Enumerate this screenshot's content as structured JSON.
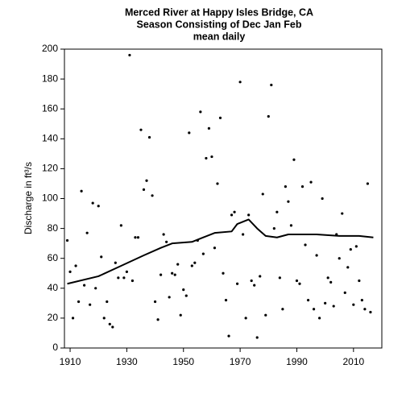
{
  "chart_data": {
    "type": "scatter",
    "title_lines": [
      "Merced River at Happy Isles Bridge, CA",
      "Season Consisting of Dec Jan Feb",
      "mean daily"
    ],
    "y_label": "Discharge in ft³/s",
    "xlim": [
      1908,
      2020
    ],
    "xticks": [
      1910,
      1930,
      1950,
      1970,
      1990,
      2010
    ],
    "ylim": [
      0,
      200
    ],
    "yticks": [
      0,
      20,
      40,
      60,
      80,
      100,
      120,
      140,
      160,
      180,
      200
    ],
    "grid": false,
    "color": "#000000",
    "x": [
      1909,
      1910,
      1911,
      1912,
      1913,
      1914,
      1915,
      1916,
      1917,
      1918,
      1919,
      1920,
      1921,
      1922,
      1923,
      1924,
      1925,
      1926,
      1927,
      1928,
      1929,
      1930,
      1931,
      1932,
      1933,
      1934,
      1935,
      1936,
      1937,
      1938,
      1939,
      1940,
      1941,
      1942,
      1943,
      1944,
      1945,
      1946,
      1947,
      1948,
      1949,
      1950,
      1951,
      1952,
      1953,
      1954,
      1955,
      1956,
      1957,
      1958,
      1959,
      1960,
      1961,
      1962,
      1963,
      1964,
      1965,
      1966,
      1967,
      1968,
      1969,
      1970,
      1971,
      1972,
      1973,
      1974,
      1975,
      1976,
      1977,
      1978,
      1979,
      1980,
      1981,
      1982,
      1983,
      1984,
      1985,
      1986,
      1987,
      1988,
      1989,
      1990,
      1991,
      1992,
      1993,
      1994,
      1995,
      1996,
      1997,
      1998,
      1999,
      2000,
      2001,
      2002,
      2003,
      2004,
      2005,
      2006,
      2007,
      2008,
      2009,
      2010,
      2011,
      2012,
      2013,
      2014,
      2015,
      2016
    ],
    "values": [
      72,
      51,
      20,
      55,
      31,
      105,
      42,
      77,
      29,
      97,
      40,
      95,
      61,
      20,
      31,
      16,
      14,
      57,
      47,
      82,
      47,
      51,
      196,
      45,
      74,
      74,
      146,
      106,
      112,
      141,
      102,
      31,
      19,
      49,
      76,
      71,
      34,
      50,
      49,
      56,
      22,
      39,
      35,
      144,
      55,
      57,
      72,
      158,
      63,
      127,
      147,
      128,
      67,
      110,
      154,
      50,
      32,
      8,
      89,
      91,
      43,
      178,
      76,
      20,
      89,
      45,
      42,
      7,
      48,
      103,
      22,
      155,
      176,
      80,
      91,
      47,
      26,
      108,
      98,
      82,
      126,
      45,
      43,
      108,
      69,
      32,
      111,
      26,
      62,
      20,
      100,
      30,
      47,
      44,
      28,
      76,
      60,
      90,
      37,
      54,
      66,
      29,
      68,
      45,
      32,
      26,
      110,
      24
    ],
    "line": {
      "color": "#000000",
      "x": [
        1909,
        1920,
        1928,
        1936,
        1942,
        1946,
        1953,
        1957,
        1961,
        1967,
        1969,
        1973,
        1976,
        1979,
        1983,
        1987,
        1991,
        1997,
        2005,
        2012,
        2017
      ],
      "values": [
        43,
        48,
        55,
        62,
        67,
        70,
        71,
        74,
        77,
        78,
        83,
        86,
        80,
        75,
        74,
        76,
        76,
        76,
        75,
        75,
        74
      ]
    }
  }
}
